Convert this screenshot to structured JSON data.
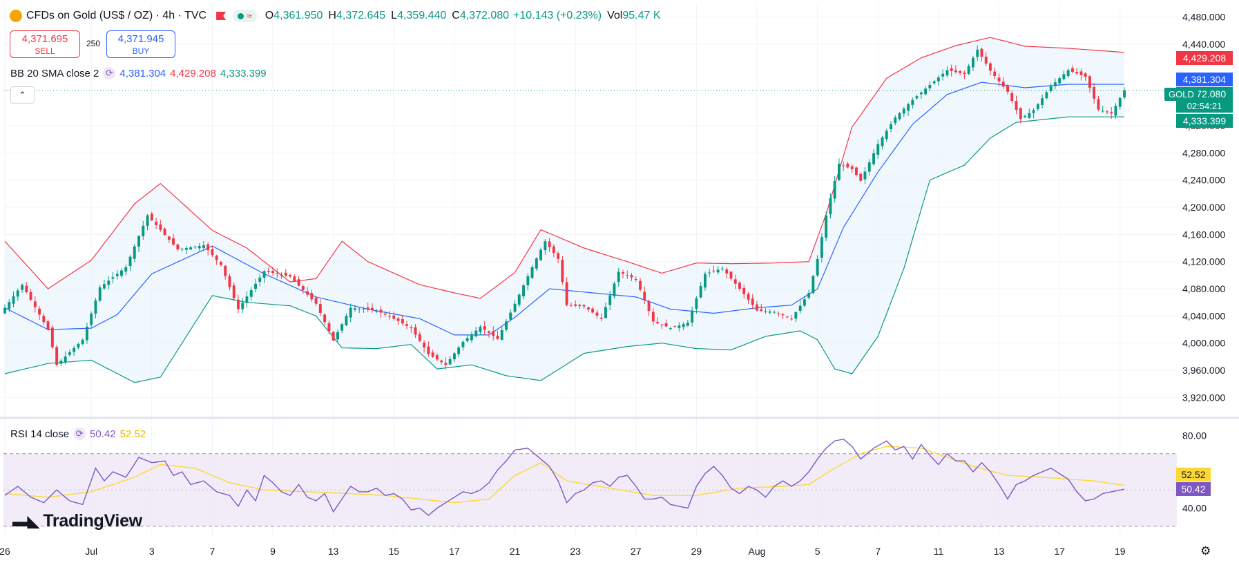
{
  "header": {
    "symbol": "CFDs on Gold (US$ / OZ) · 4h · TVC",
    "open_label": "O",
    "open": "4,361.950",
    "high_label": "H",
    "high": "4,372.645",
    "low_label": "L",
    "low": "4,359.440",
    "close_label": "C",
    "close": "4,372.080",
    "change": "+10.143 (+0.23%)",
    "vol_label": "Vol",
    "vol": "95.47 K",
    "live_icon": "wave-icon"
  },
  "trade": {
    "sell_price": "4,371.695",
    "sell_label": "SELL",
    "spread": "250",
    "buy_price": "4,371.945",
    "buy_label": "BUY"
  },
  "bb_indicator": {
    "label": "BB 20 SMA close 2",
    "basis": "4,381.304",
    "upper": "4,429.208",
    "lower": "4,333.399"
  },
  "rsi_indicator": {
    "label": "RSI 14 close",
    "rsi": "50.42",
    "ma": "52.52"
  },
  "price_tags": {
    "upper": "4,429.208",
    "basis": "4,381.304",
    "last": "4,372.080",
    "countdown": "02:54:21",
    "lower": "4,333.399",
    "symbol_tag": "GOLD"
  },
  "colors": {
    "up": "#089981",
    "down": "#f23645",
    "bb_upper": "#f23645",
    "bb_basis": "#2962ff",
    "bb_lower": "#089981",
    "bb_fill": "#e3f2fd",
    "rsi": "#7e57c2",
    "rsi_ma": "#fdd835",
    "rsi_band": "#ede7f6"
  },
  "brand": "TradingView",
  "chart_data": {
    "type": "candlestick",
    "price_axis": {
      "ticks": [
        "3,920.000",
        "3,960.000",
        "4,000.000",
        "4,040.000",
        "4,080.000",
        "4,120.000",
        "4,160.000",
        "4,200.000",
        "4,240.000",
        "4,280.000",
        "4,320.000",
        "4,440.000",
        "4,480.000"
      ],
      "values": [
        3920,
        3960,
        4000,
        4040,
        4080,
        4120,
        4160,
        4200,
        4240,
        4280,
        4320,
        4440,
        4480
      ],
      "range": [
        3895,
        4500
      ]
    },
    "rsi_axis": {
      "ticks": [
        "40.00",
        "80.00"
      ],
      "values": [
        40,
        80
      ],
      "bands": [
        30,
        70
      ],
      "range": [
        25,
        87
      ]
    },
    "time_axis": [
      "26",
      "Jul",
      "3",
      "7",
      "9",
      "13",
      "15",
      "17",
      "21",
      "23",
      "27",
      "29",
      "Aug",
      "5",
      "7",
      "11",
      "13",
      "17",
      "19"
    ],
    "time_positions": [
      0,
      20,
      34,
      48,
      62,
      76,
      90,
      104,
      118,
      132,
      146,
      160,
      174,
      188,
      202,
      216,
      230,
      244,
      258
    ],
    "n_bars": 260,
    "price_anchors": [
      [
        0,
        4052
      ],
      [
        4,
        4086
      ],
      [
        10,
        4020
      ],
      [
        12,
        3968
      ],
      [
        18,
        4005
      ],
      [
        22,
        4082
      ],
      [
        28,
        4112
      ],
      [
        33,
        4188
      ],
      [
        40,
        4138
      ],
      [
        46,
        4144
      ],
      [
        50,
        4115
      ],
      [
        54,
        4050
      ],
      [
        60,
        4106
      ],
      [
        66,
        4098
      ],
      [
        72,
        4058
      ],
      [
        76,
        4004
      ],
      [
        80,
        4052
      ],
      [
        86,
        4048
      ],
      [
        90,
        4036
      ],
      [
        94,
        4022
      ],
      [
        98,
        3984
      ],
      [
        102,
        3968
      ],
      [
        106,
        4002
      ],
      [
        110,
        4024
      ],
      [
        114,
        4006
      ],
      [
        118,
        4058
      ],
      [
        122,
        4112
      ],
      [
        125,
        4150
      ],
      [
        128,
        4124
      ],
      [
        130,
        4056
      ],
      [
        134,
        4054
      ],
      [
        138,
        4036
      ],
      [
        142,
        4105
      ],
      [
        146,
        4094
      ],
      [
        150,
        4032
      ],
      [
        154,
        4022
      ],
      [
        158,
        4030
      ],
      [
        162,
        4102
      ],
      [
        166,
        4110
      ],
      [
        170,
        4080
      ],
      [
        174,
        4048
      ],
      [
        178,
        4046
      ],
      [
        182,
        4036
      ],
      [
        186,
        4074
      ],
      [
        188,
        4124
      ],
      [
        190,
        4188
      ],
      [
        193,
        4264
      ],
      [
        196,
        4256
      ],
      [
        198,
        4239
      ],
      [
        202,
        4293
      ],
      [
        206,
        4332
      ],
      [
        210,
        4358
      ],
      [
        214,
        4380
      ],
      [
        218,
        4402
      ],
      [
        222,
        4396
      ],
      [
        225,
        4432
      ],
      [
        228,
        4401
      ],
      [
        232,
        4370
      ],
      [
        235,
        4330
      ],
      [
        238,
        4343
      ],
      [
        242,
        4378
      ],
      [
        246,
        4402
      ],
      [
        250,
        4392
      ],
      [
        253,
        4344
      ],
      [
        256,
        4338
      ],
      [
        259,
        4372
      ]
    ],
    "bb_upper_anchors": [
      [
        0,
        4150
      ],
      [
        10,
        4080
      ],
      [
        20,
        4122
      ],
      [
        30,
        4205
      ],
      [
        36,
        4235
      ],
      [
        48,
        4166
      ],
      [
        56,
        4140
      ],
      [
        66,
        4090
      ],
      [
        72,
        4095
      ],
      [
        78,
        4150
      ],
      [
        84,
        4120
      ],
      [
        96,
        4086
      ],
      [
        104,
        4074
      ],
      [
        110,
        4066
      ],
      [
        118,
        4104
      ],
      [
        124,
        4167
      ],
      [
        134,
        4140
      ],
      [
        144,
        4120
      ],
      [
        152,
        4103
      ],
      [
        160,
        4118
      ],
      [
        168,
        4117
      ],
      [
        178,
        4118
      ],
      [
        186,
        4120
      ],
      [
        190,
        4190
      ],
      [
        196,
        4318
      ],
      [
        204,
        4390
      ],
      [
        212,
        4420
      ],
      [
        220,
        4438
      ],
      [
        228,
        4450
      ],
      [
        236,
        4437
      ],
      [
        246,
        4434
      ],
      [
        259,
        4428
      ]
    ],
    "bb_basis_anchors": [
      [
        0,
        4052
      ],
      [
        10,
        4020
      ],
      [
        20,
        4022
      ],
      [
        26,
        4042
      ],
      [
        34,
        4102
      ],
      [
        48,
        4143
      ],
      [
        60,
        4102
      ],
      [
        72,
        4068
      ],
      [
        84,
        4050
      ],
      [
        96,
        4036
      ],
      [
        104,
        4012
      ],
      [
        112,
        4012
      ],
      [
        118,
        4038
      ],
      [
        126,
        4080
      ],
      [
        136,
        4074
      ],
      [
        146,
        4068
      ],
      [
        154,
        4050
      ],
      [
        164,
        4044
      ],
      [
        174,
        4052
      ],
      [
        182,
        4056
      ],
      [
        188,
        4080
      ],
      [
        194,
        4170
      ],
      [
        202,
        4252
      ],
      [
        210,
        4322
      ],
      [
        218,
        4366
      ],
      [
        226,
        4384
      ],
      [
        236,
        4376
      ],
      [
        246,
        4381
      ],
      [
        259,
        4381
      ]
    ],
    "bb_lower_anchors": [
      [
        0,
        3955
      ],
      [
        10,
        3970
      ],
      [
        20,
        3975
      ],
      [
        30,
        3942
      ],
      [
        36,
        3950
      ],
      [
        48,
        4070
      ],
      [
        56,
        4060
      ],
      [
        66,
        4055
      ],
      [
        72,
        4040
      ],
      [
        78,
        3993
      ],
      [
        86,
        3992
      ],
      [
        94,
        3998
      ],
      [
        100,
        3962
      ],
      [
        108,
        3968
      ],
      [
        116,
        3952
      ],
      [
        124,
        3945
      ],
      [
        134,
        3985
      ],
      [
        144,
        3995
      ],
      [
        152,
        4000
      ],
      [
        160,
        3992
      ],
      [
        168,
        3990
      ],
      [
        176,
        4010
      ],
      [
        184,
        4018
      ],
      [
        188,
        4005
      ],
      [
        192,
        3962
      ],
      [
        196,
        3955
      ],
      [
        202,
        4010
      ],
      [
        208,
        4110
      ],
      [
        214,
        4240
      ],
      [
        222,
        4262
      ],
      [
        228,
        4302
      ],
      [
        234,
        4325
      ],
      [
        246,
        4333
      ],
      [
        259,
        4333
      ]
    ],
    "rsi_anchors": [
      [
        0,
        47
      ],
      [
        3,
        52
      ],
      [
        6,
        46
      ],
      [
        9,
        43
      ],
      [
        12,
        50
      ],
      [
        15,
        44
      ],
      [
        18,
        42
      ],
      [
        21,
        62
      ],
      [
        23,
        55
      ],
      [
        25,
        60
      ],
      [
        28,
        57
      ],
      [
        31,
        68
      ],
      [
        34,
        65
      ],
      [
        37,
        66
      ],
      [
        39,
        58
      ],
      [
        41,
        60
      ],
      [
        43,
        53
      ],
      [
        46,
        55
      ],
      [
        49,
        49
      ],
      [
        52,
        47
      ],
      [
        54,
        41
      ],
      [
        56,
        50
      ],
      [
        58,
        44
      ],
      [
        60,
        58
      ],
      [
        62,
        54
      ],
      [
        64,
        49
      ],
      [
        66,
        47
      ],
      [
        68,
        53
      ],
      [
        70,
        46
      ],
      [
        72,
        44
      ],
      [
        74,
        48
      ],
      [
        76,
        38
      ],
      [
        78,
        45
      ],
      [
        80,
        52
      ],
      [
        82,
        49
      ],
      [
        84,
        49
      ],
      [
        86,
        51
      ],
      [
        88,
        47
      ],
      [
        90,
        48
      ],
      [
        92,
        45
      ],
      [
        94,
        39
      ],
      [
        96,
        40
      ],
      [
        98,
        36
      ],
      [
        100,
        40
      ],
      [
        102,
        43
      ],
      [
        104,
        46
      ],
      [
        106,
        49
      ],
      [
        108,
        48
      ],
      [
        110,
        50
      ],
      [
        112,
        54
      ],
      [
        114,
        61
      ],
      [
        116,
        66
      ],
      [
        118,
        72
      ],
      [
        121,
        73
      ],
      [
        124,
        67
      ],
      [
        126,
        63
      ],
      [
        128,
        55
      ],
      [
        130,
        43
      ],
      [
        132,
        48
      ],
      [
        134,
        50
      ],
      [
        136,
        54
      ],
      [
        138,
        55
      ],
      [
        140,
        52
      ],
      [
        142,
        57
      ],
      [
        144,
        58
      ],
      [
        146,
        52
      ],
      [
        148,
        45
      ],
      [
        150,
        45
      ],
      [
        152,
        46
      ],
      [
        154,
        42
      ],
      [
        156,
        41
      ],
      [
        158,
        40
      ],
      [
        160,
        52
      ],
      [
        162,
        59
      ],
      [
        164,
        63
      ],
      [
        166,
        58
      ],
      [
        168,
        51
      ],
      [
        170,
        48
      ],
      [
        172,
        52
      ],
      [
        174,
        50
      ],
      [
        176,
        46
      ],
      [
        178,
        52
      ],
      [
        180,
        55
      ],
      [
        182,
        52
      ],
      [
        184,
        55
      ],
      [
        186,
        60
      ],
      [
        188,
        67
      ],
      [
        190,
        73
      ],
      [
        192,
        77
      ],
      [
        194,
        78
      ],
      [
        196,
        74
      ],
      [
        198,
        67
      ],
      [
        201,
        73
      ],
      [
        204,
        77
      ],
      [
        206,
        72
      ],
      [
        208,
        74
      ],
      [
        210,
        67
      ],
      [
        212,
        75
      ],
      [
        214,
        69
      ],
      [
        216,
        64
      ],
      [
        218,
        70
      ],
      [
        220,
        66
      ],
      [
        222,
        66
      ],
      [
        224,
        60
      ],
      [
        226,
        65
      ],
      [
        228,
        60
      ],
      [
        230,
        53
      ],
      [
        232,
        45
      ],
      [
        234,
        53
      ],
      [
        236,
        55
      ],
      [
        238,
        58
      ],
      [
        240,
        60
      ],
      [
        242,
        62
      ],
      [
        244,
        59
      ],
      [
        246,
        56
      ],
      [
        248,
        49
      ],
      [
        250,
        44
      ],
      [
        252,
        45
      ],
      [
        254,
        48
      ],
      [
        256,
        49
      ],
      [
        259,
        50.42
      ]
    ],
    "rsi_ma_anchors": [
      [
        0,
        48
      ],
      [
        10,
        46
      ],
      [
        20,
        49
      ],
      [
        30,
        57
      ],
      [
        36,
        64
      ],
      [
        44,
        62
      ],
      [
        52,
        54
      ],
      [
        60,
        50
      ],
      [
        70,
        49
      ],
      [
        80,
        48
      ],
      [
        88,
        47
      ],
      [
        96,
        45
      ],
      [
        104,
        43
      ],
      [
        112,
        45
      ],
      [
        118,
        58
      ],
      [
        124,
        65
      ],
      [
        130,
        55
      ],
      [
        140,
        51
      ],
      [
        150,
        47
      ],
      [
        160,
        47
      ],
      [
        170,
        51
      ],
      [
        180,
        52
      ],
      [
        186,
        53
      ],
      [
        192,
        62
      ],
      [
        198,
        70
      ],
      [
        204,
        74
      ],
      [
        212,
        73
      ],
      [
        218,
        68
      ],
      [
        224,
        63
      ],
      [
        232,
        58
      ],
      [
        240,
        57
      ],
      [
        246,
        56
      ],
      [
        252,
        55
      ],
      [
        259,
        52.52
      ]
    ]
  }
}
